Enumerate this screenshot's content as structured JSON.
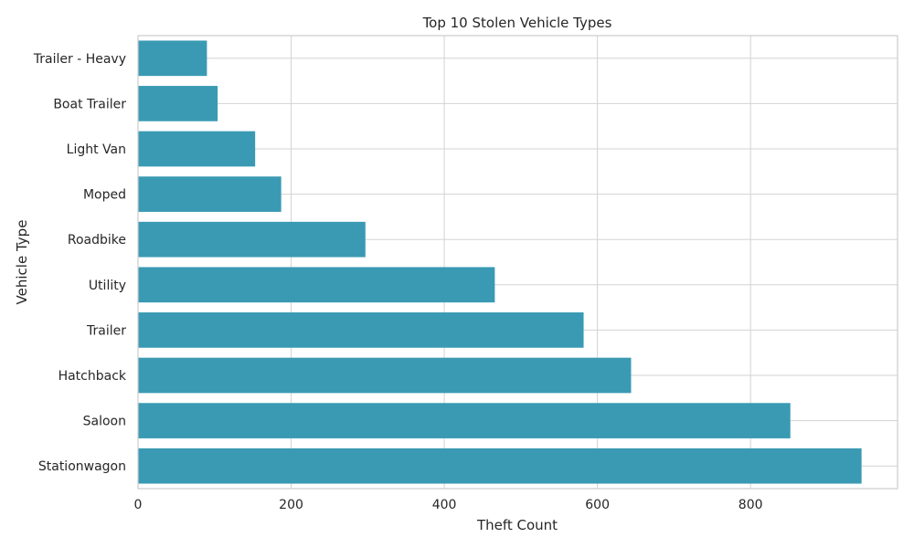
{
  "chart_data": {
    "type": "bar",
    "orientation": "horizontal",
    "title": "Top 10 Stolen Vehicle Types",
    "xlabel": "Theft Count",
    "ylabel": "Vehicle Type",
    "categories": [
      "Stationwagon",
      "Saloon",
      "Hatchback",
      "Trailer",
      "Utility",
      "Roadbike",
      "Moped",
      "Light Van",
      "Boat Trailer",
      "Trailer - Heavy"
    ],
    "values": [
      945,
      852,
      644,
      582,
      466,
      297,
      187,
      153,
      104,
      90
    ],
    "xlim": [
      0,
      992
    ],
    "xticks": [
      0,
      200,
      400,
      600,
      800
    ],
    "grid": true,
    "bar_color": "#3a9ab3",
    "grid_color": "#d3d3d3",
    "frame_color": "#cccccc"
  }
}
